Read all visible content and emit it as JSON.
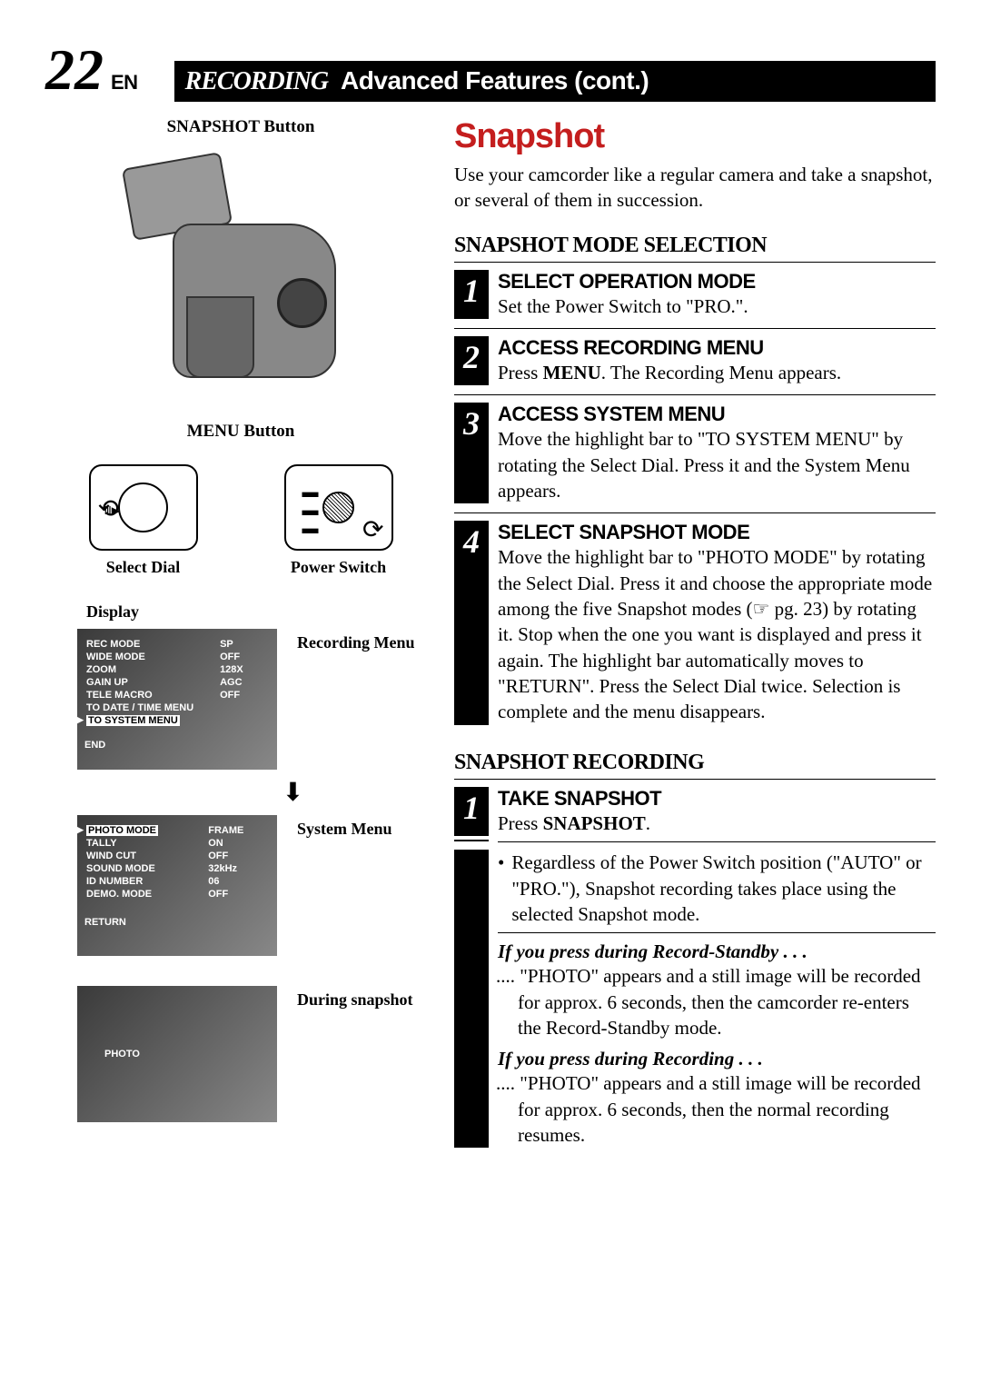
{
  "page": {
    "number": "22",
    "lang": "EN"
  },
  "header": {
    "section": "RECORDING",
    "sub": "Advanced Features (cont.)"
  },
  "left": {
    "snapshot_btn": "SNAPSHOT Button",
    "menu_btn": "MENU Button",
    "select_dial": "Select Dial",
    "power_switch": "Power Switch",
    "display_label": "Display",
    "rec_menu_label": "Recording Menu",
    "sys_menu_label": "System Menu",
    "during_snapshot": "During snapshot",
    "rec_menu": {
      "rows": [
        [
          "REC MODE",
          "SP"
        ],
        [
          "WIDE MODE",
          "OFF"
        ],
        [
          "ZOOM",
          "128X"
        ],
        [
          "GAIN UP",
          "AGC"
        ],
        [
          "TELE MACRO",
          "OFF"
        ],
        [
          "TO DATE / TIME MENU",
          ""
        ]
      ],
      "highlight": "TO SYSTEM MENU",
      "end": "END"
    },
    "sys_menu": {
      "highlight": "PHOTO MODE",
      "highlight_val": "FRAME",
      "rows": [
        [
          "TALLY",
          "ON"
        ],
        [
          "WIND CUT",
          "OFF"
        ],
        [
          "SOUND MODE",
          "32kHz"
        ],
        [
          "ID NUMBER",
          "06"
        ],
        [
          "DEMO. MODE",
          "OFF"
        ]
      ],
      "return": "RETURN"
    },
    "photo_text": "PHOTO"
  },
  "right": {
    "title": "Snapshot",
    "intro": "Use your camcorder like a regular camera and take a snapshot, or several of them in succession.",
    "sec1": "SNAPSHOT MODE SELECTION",
    "steps": [
      {
        "n": "1",
        "t": "SELECT OPERATION MODE",
        "b": "Set the Power Switch to \"PRO.\"."
      },
      {
        "n": "2",
        "t": "ACCESS RECORDING MENU",
        "b": "Press <b>MENU</b>. The Recording Menu appears."
      },
      {
        "n": "3",
        "t": "ACCESS SYSTEM MENU",
        "b": "Move the highlight bar to \"TO SYSTEM MENU\" by rotating the Select Dial. Press it and the System Menu appears."
      },
      {
        "n": "4",
        "t": "SELECT SNAPSHOT MODE",
        "b": "Move the highlight bar to \"PHOTO MODE\" by rotating the Select Dial. Press it and choose the appropriate mode among the five Snapshot modes (☞ pg. 23) by rotating it. Stop when the one you want is displayed and press it again. The highlight bar automatically moves to \"RETURN\". Press the Select Dial twice. Selection is complete and the menu disappears."
      }
    ],
    "sec2": "SNAPSHOT RECORDING",
    "step_rec": {
      "n": "1",
      "t": "TAKE SNAPSHOT",
      "b": "Press <b>SNAPSHOT</b>."
    },
    "bullet1": "Regardless of the Power Switch position (\"AUTO\" or \"PRO.\"), Snapshot recording takes place using the selected Snapshot mode.",
    "cond1_h": "If you press during Record-Standby . . .",
    "cond1_b": ".... \"PHOTO\" appears and a still image will be recorded for approx. 6 seconds, then the camcorder re-enters the Record-Standby mode.",
    "cond2_h": "If you press during Recording . . .",
    "cond2_b": ".... \"PHOTO\" appears and a still image will be recorded for approx. 6 seconds, then the normal recording resumes."
  },
  "colors": {
    "red": "#c41e1e",
    "black": "#000000"
  }
}
